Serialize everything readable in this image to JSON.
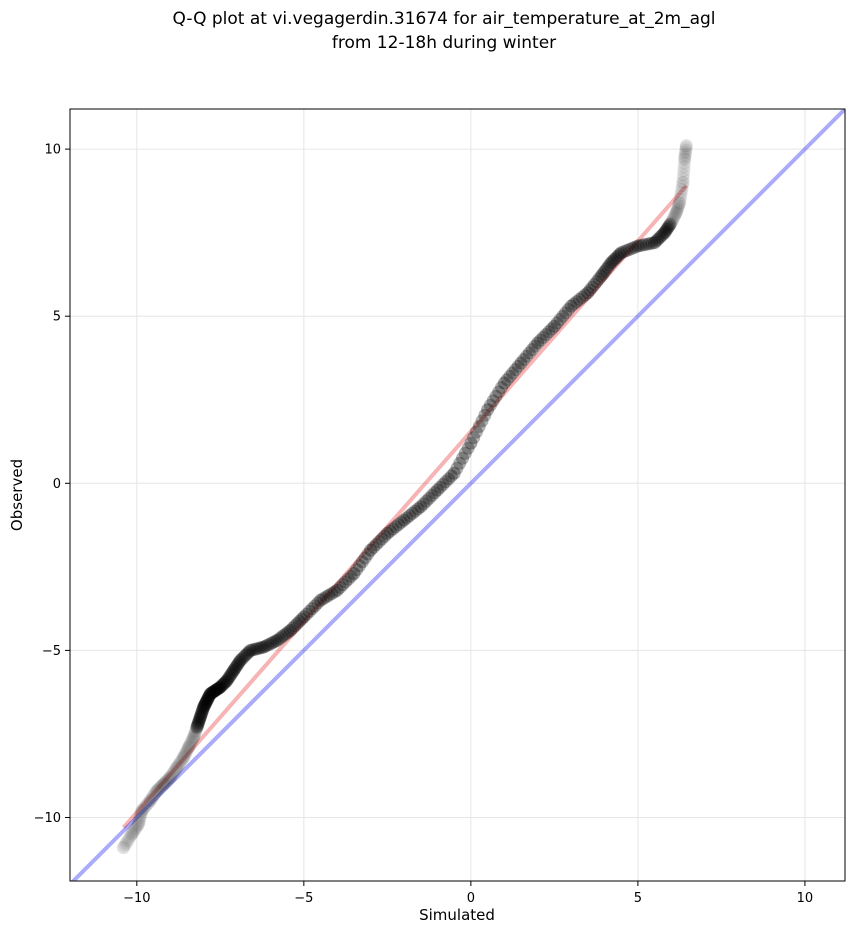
{
  "chart_data": {
    "type": "scatter",
    "title_lines": [
      "Q-Q plot at vi.vegagerdin.31674 for air_temperature_at_2m_agl",
      "from 12-18h during winter"
    ],
    "xlabel": "Simulated",
    "ylabel": "Observed",
    "xlim": [
      -12.0,
      11.2
    ],
    "ylim": [
      -11.9,
      11.2
    ],
    "xticks": [
      -10,
      -5,
      0,
      5,
      10
    ],
    "yticks": [
      -10,
      -5,
      0,
      5,
      10
    ],
    "xtick_labels": [
      "−10",
      "−5",
      "0",
      "5",
      "10"
    ],
    "ytick_labels": [
      "−10",
      "−5",
      "0",
      "5",
      "10"
    ],
    "grid": true,
    "series": [
      {
        "kind": "scatter",
        "color": "#000000",
        "x": [
          -10.4,
          -10.15,
          -9.95,
          -9.85,
          -9.6,
          -9.4,
          -9.2,
          -9.0,
          -8.8,
          -8.6,
          -8.45,
          -8.3,
          -8.2,
          -8.1,
          -8.0,
          -7.9,
          -7.8,
          -7.65,
          -7.5,
          -7.3,
          -7.1,
          -6.9,
          -6.6,
          -6.2,
          -5.8,
          -5.4,
          -5.0,
          -4.5,
          -4.0,
          -3.5,
          -3.0,
          -2.5,
          -2.0,
          -1.5,
          -1.0,
          -0.5,
          0.0,
          0.5,
          1.0,
          1.5,
          2.0,
          2.5,
          3.0,
          3.5,
          3.9,
          4.2,
          4.5,
          5.0,
          5.5,
          5.8,
          6.0,
          6.15,
          6.25,
          6.35,
          6.4,
          6.45
        ],
        "y": [
          -10.9,
          -10.5,
          -10.2,
          -9.8,
          -9.5,
          -9.2,
          -9.0,
          -8.8,
          -8.5,
          -8.2,
          -7.9,
          -7.6,
          -7.3,
          -7.0,
          -6.7,
          -6.5,
          -6.3,
          -6.2,
          -6.1,
          -5.9,
          -5.6,
          -5.3,
          -5.0,
          -4.9,
          -4.7,
          -4.4,
          -4.0,
          -3.5,
          -3.2,
          -2.7,
          -2.0,
          -1.5,
          -1.1,
          -0.7,
          -0.2,
          0.3,
          1.2,
          2.2,
          3.0,
          3.6,
          4.2,
          4.7,
          5.3,
          5.7,
          6.2,
          6.6,
          6.9,
          7.1,
          7.2,
          7.5,
          7.8,
          8.1,
          8.4,
          9.0,
          9.7,
          10.1
        ]
      },
      {
        "kind": "line",
        "color": "#e31a1c",
        "x": [
          -10.4,
          6.45
        ],
        "y": [
          -10.3,
          8.9
        ]
      },
      {
        "kind": "line",
        "color": "#0000ee",
        "x": [
          -12.0,
          11.2
        ],
        "y": [
          -12.0,
          11.2
        ]
      }
    ]
  }
}
